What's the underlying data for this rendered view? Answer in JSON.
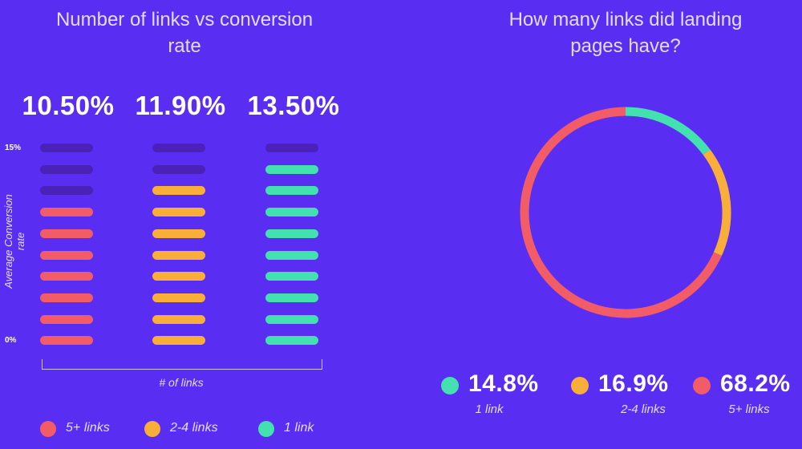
{
  "chart_data": [
    {
      "type": "bar",
      "title": "Number of links vs conversion rate",
      "xlabel": "# of links",
      "ylabel": "Average Conversion rate",
      "ylim": [
        0,
        15
      ],
      "yticks": [
        "15%",
        "0%"
      ],
      "total_segments": 10,
      "categories": [
        "5+ links",
        "2-4 links",
        "1 link"
      ],
      "values": [
        10.5,
        11.9,
        13.5
      ],
      "value_labels": [
        "10.50%",
        "11.90%",
        "13.50%"
      ],
      "filled_segments": [
        7,
        8,
        9
      ],
      "colors": [
        "#f25c66",
        "#f9ae3a",
        "#43e0b0"
      ],
      "empty_color": "#4a22b8",
      "legend_placement": "bottom",
      "grid": false
    },
    {
      "type": "pie",
      "style": "donut",
      "title": "How many links did landing pages have?",
      "labels": [
        "1 link",
        "2-4 links",
        "5+ links"
      ],
      "values": [
        14.8,
        16.9,
        68.2
      ],
      "value_labels": [
        "14.8%",
        "16.9%",
        "68.2%"
      ],
      "colors": [
        "#43e0b0",
        "#f9ae3a",
        "#f25c66"
      ],
      "legend_placement": "bottom"
    }
  ]
}
